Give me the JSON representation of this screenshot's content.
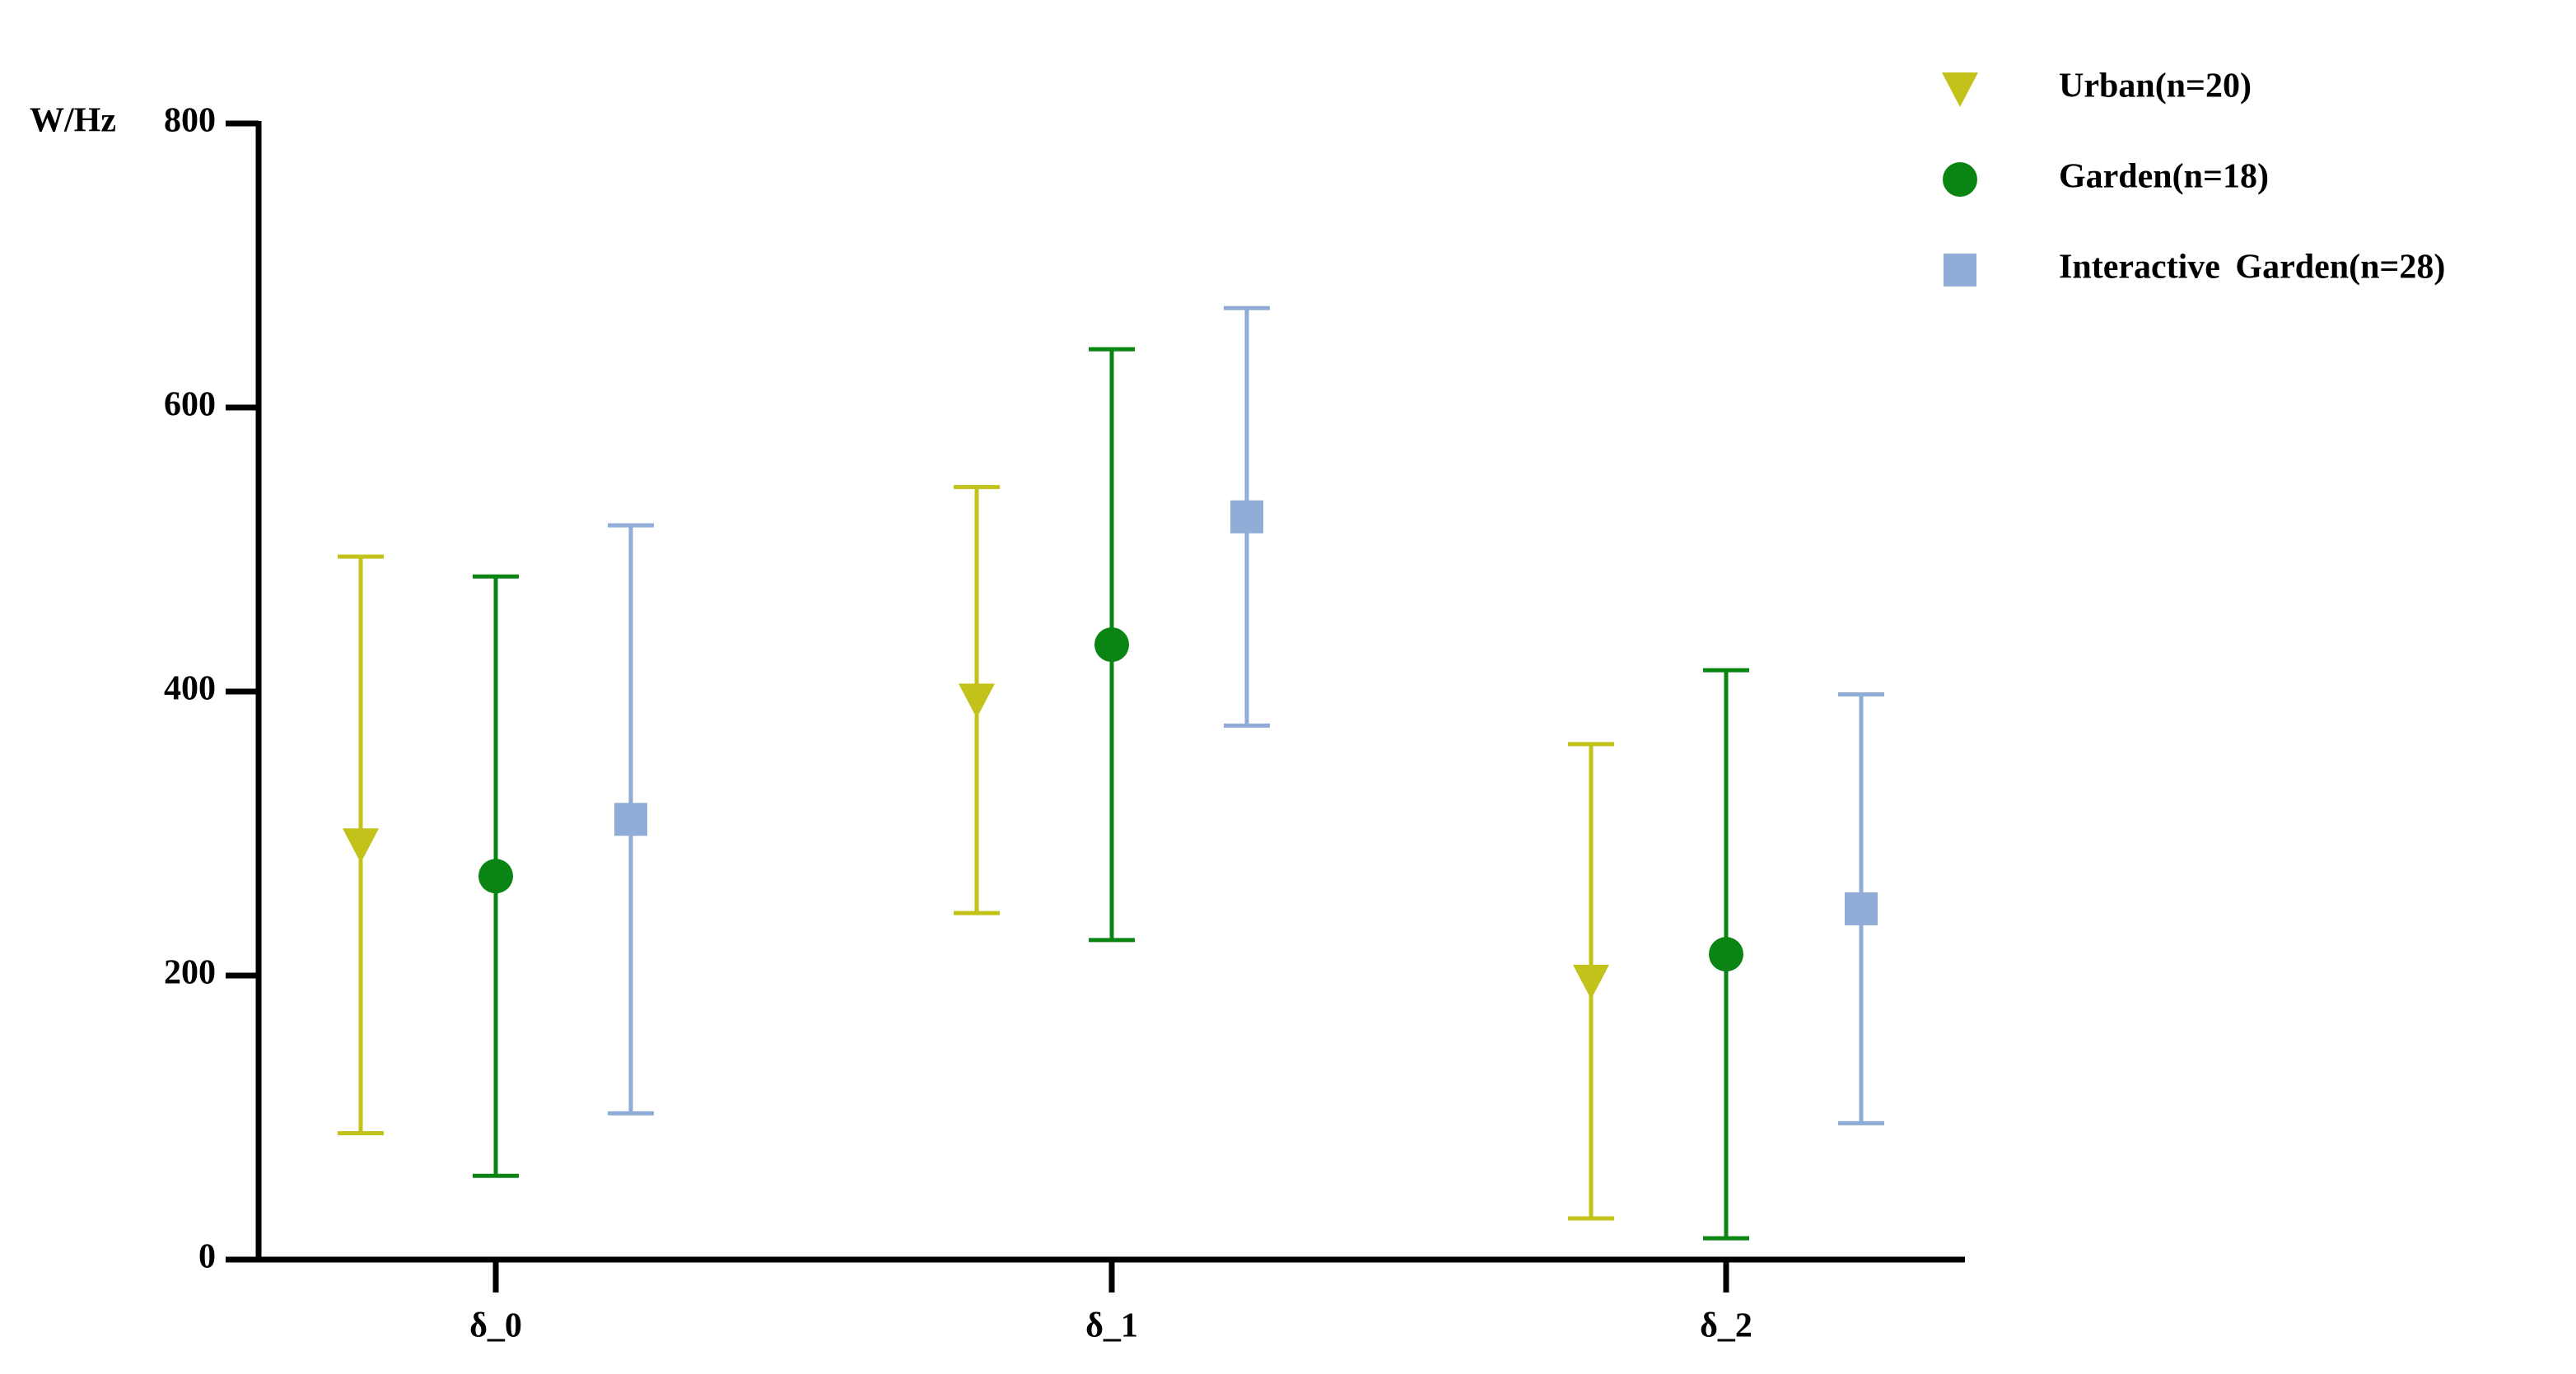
{
  "chart_data": {
    "type": "errorbar",
    "y_label": "W/Hz",
    "categories": [
      "δ_0",
      "δ_1",
      "δ_2"
    ],
    "series": [
      {
        "name": "Urban(n=20)",
        "color": "#c3c21a",
        "marker": "triangle-down",
        "values": [
          292,
          394,
          196
        ],
        "errors": [
          203,
          150,
          167
        ]
      },
      {
        "name": "Garden(n=18)",
        "color": "#0a8413",
        "marker": "circle",
        "values": [
          270,
          433,
          215
        ],
        "errors": [
          211,
          208,
          200
        ]
      },
      {
        "name": "Interactive Garden(n=28)",
        "color": "#8fadd6",
        "marker": "square",
        "values": [
          310,
          523,
          247
        ],
        "errors": [
          207,
          147,
          151
        ]
      }
    ],
    "ylim": [
      0,
      800
    ],
    "yticks": [
      0,
      200,
      400,
      600,
      800
    ],
    "legend": "top-right"
  }
}
